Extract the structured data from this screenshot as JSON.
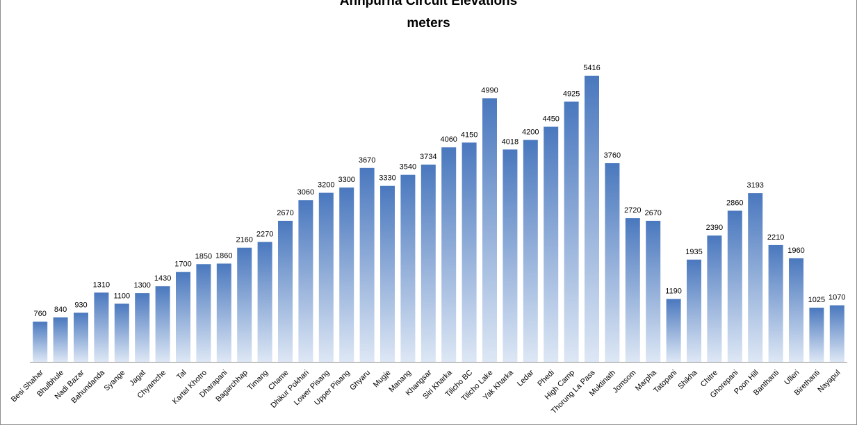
{
  "chart_data": {
    "type": "bar",
    "title": "Annpurna Circuit Elevations",
    "subtitle": "meters",
    "xlabel": "",
    "ylabel": "",
    "ylim": [
      0,
      5900
    ],
    "grid": false,
    "legend": "none",
    "bar_color_top": "#4a78be",
    "bar_color_bottom": "#dde7f5",
    "categories": [
      "Besi Shahar",
      "Bhulbhule",
      "Nadi Bazar",
      "Bahundanda",
      "Syange",
      "Jagat",
      "Chyamche",
      "Tal",
      "Kartel Khotro",
      "Dharapani",
      "Bagarchhap",
      "Timang",
      "Chame",
      "Dhikur Pokhari",
      "Lower Pisang",
      "Upper Pisang",
      "Ghyaru",
      "Mugje",
      "Manang",
      "Khangsar",
      "Siri Kharka",
      "Tilicho BC",
      "Tilicho Lake",
      "Yak Kharka",
      "Ledar",
      "Phedi",
      "High Camp",
      "Thorung La Pass",
      "Muktinath",
      "Jomsom",
      "Marpha",
      "Tatopani",
      "Shikha",
      "Chitre",
      "Ghorepani",
      "Poon Hill",
      "Banthanti",
      "Ulleri",
      "Birethanti",
      "Nayapul"
    ],
    "values": [
      760,
      840,
      930,
      1310,
      1100,
      1300,
      1430,
      1700,
      1850,
      1860,
      2160,
      2270,
      2670,
      3060,
      3200,
      3300,
      3670,
      3330,
      3540,
      3734,
      4060,
      4150,
      4990,
      4018,
      4200,
      4450,
      4925,
      5416,
      3760,
      2720,
      2670,
      1190,
      1935,
      2390,
      2860,
      3193,
      2210,
      1960,
      1025,
      1070
    ]
  }
}
